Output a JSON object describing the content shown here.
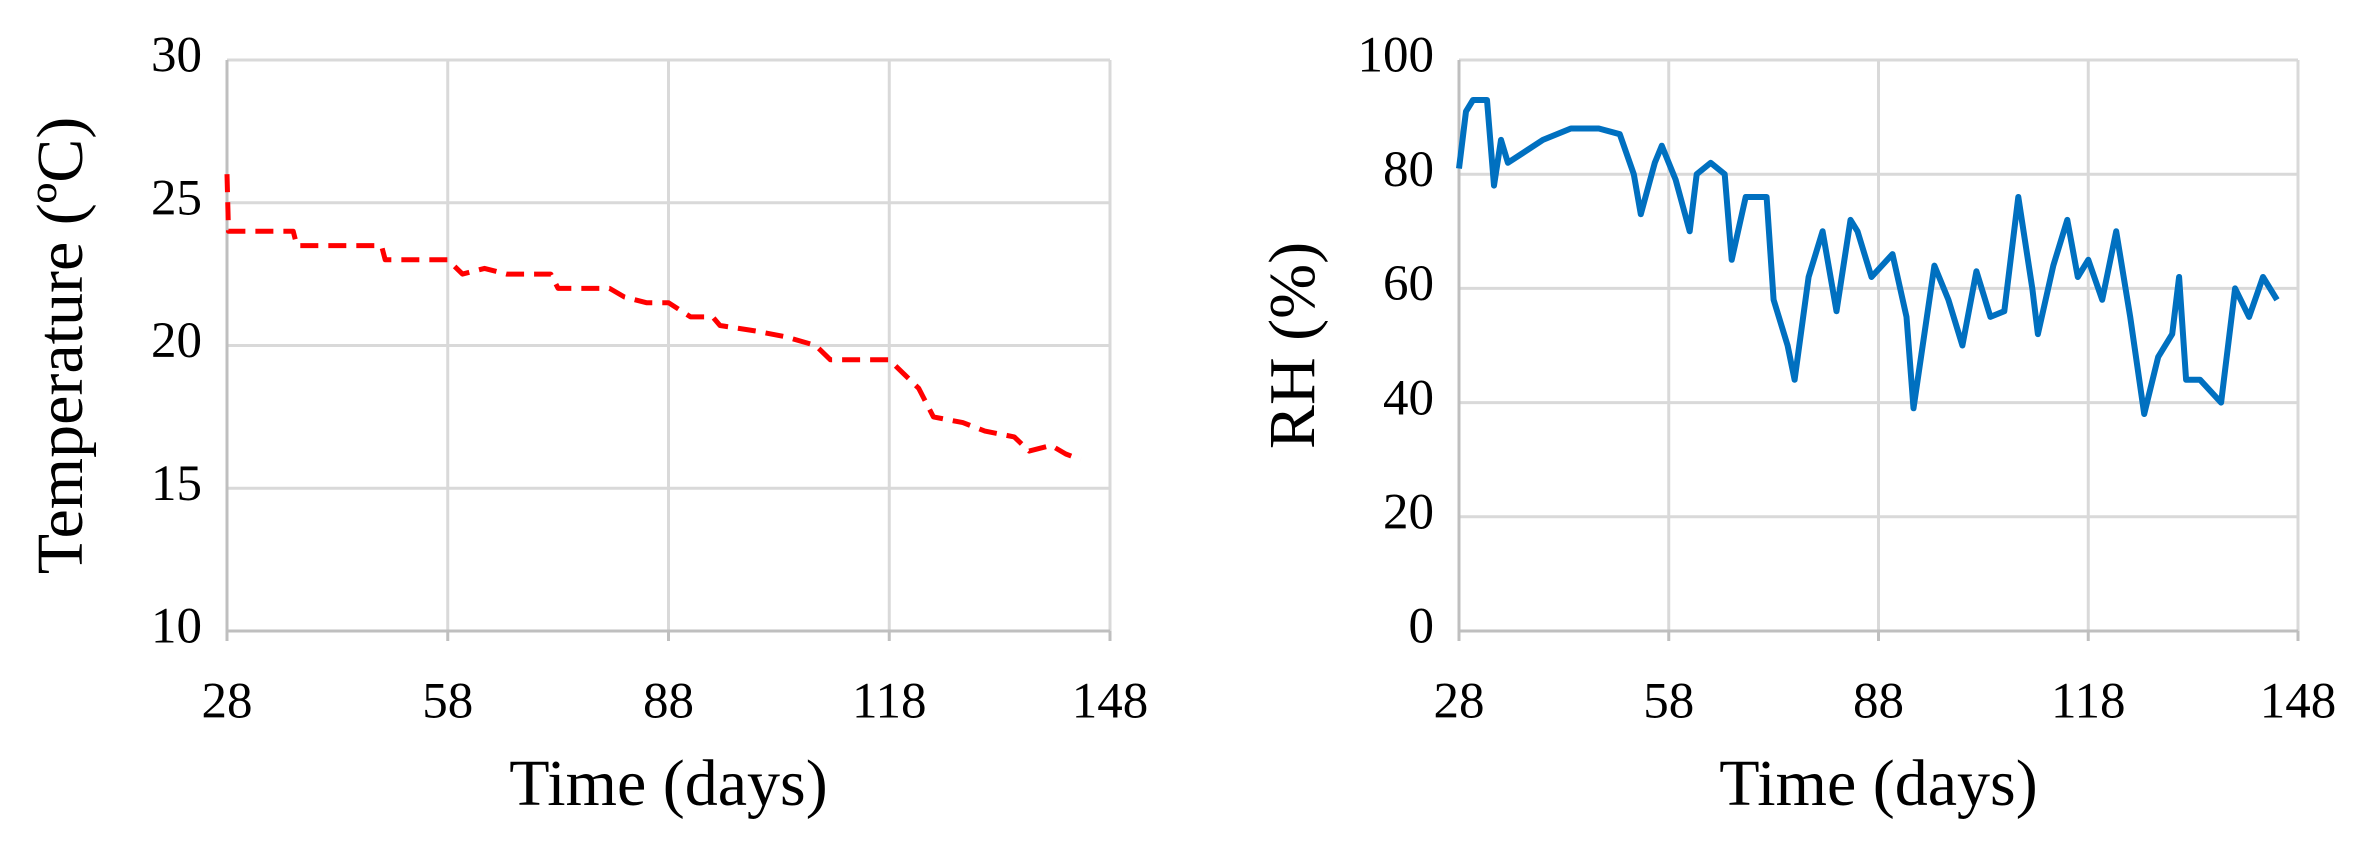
{
  "chart_data": [
    {
      "type": "line",
      "x_label": "Time (days)",
      "y_label": "Temperature (ºC)",
      "xlim": [
        28,
        148
      ],
      "xticks": [
        28,
        58,
        88,
        118,
        148
      ],
      "ylim": [
        10,
        30
      ],
      "yticks": [
        10,
        15,
        20,
        25,
        30
      ],
      "grid": true,
      "series": [
        {
          "color": "#ff0000",
          "dashed": true,
          "x": [
            28,
            28.2,
            37,
            37.5,
            49,
            49.5,
            58,
            60,
            63,
            66,
            72,
            73,
            80,
            82,
            85,
            88,
            91,
            94,
            95,
            100,
            104,
            108,
            110,
            118,
            120,
            122,
            124,
            128,
            131,
            135,
            137,
            140,
            142,
            144
          ],
          "values": [
            26,
            24,
            24,
            23.5,
            23.5,
            23,
            23,
            22.5,
            22.7,
            22.5,
            22.5,
            22,
            22,
            21.7,
            21.5,
            21.5,
            21,
            21,
            20.7,
            20.5,
            20.3,
            20,
            19.5,
            19.5,
            19,
            18.5,
            17.5,
            17.3,
            17,
            16.8,
            16.3,
            16.5,
            16.2,
            16
          ]
        }
      ]
    },
    {
      "type": "line",
      "x_label": "Time (days)",
      "y_label": "RH (%)",
      "xlim": [
        28,
        148
      ],
      "xticks": [
        28,
        58,
        88,
        118,
        148
      ],
      "ylim": [
        0,
        100
      ],
      "yticks": [
        0,
        20,
        40,
        60,
        80,
        100
      ],
      "grid": true,
      "series": [
        {
          "color": "#0070c0",
          "dashed": false,
          "x": [
            28,
            29,
            30,
            32,
            33,
            34,
            35,
            40,
            44,
            48,
            51,
            53,
            54,
            56,
            57,
            59,
            61,
            62,
            64,
            66,
            67,
            69,
            72,
            73,
            75,
            76,
            78,
            80,
            82,
            84,
            85,
            87,
            90,
            92,
            93,
            96,
            98,
            100,
            102,
            104,
            106,
            108,
            110,
            110.8,
            113,
            115,
            116.5,
            118,
            120,
            122,
            124,
            126,
            128,
            130,
            131,
            132,
            134,
            137,
            139,
            141,
            143,
            145
          ],
          "values": [
            81,
            91,
            93,
            93,
            78,
            86,
            82,
            86,
            88,
            88,
            87,
            80,
            73,
            82,
            85,
            79,
            70,
            80,
            82,
            80,
            65,
            76,
            76,
            58,
            50,
            44,
            62,
            70,
            56,
            72,
            70,
            62,
            66,
            55,
            39,
            64,
            58,
            50,
            63,
            55,
            56,
            76,
            60,
            52,
            64,
            72,
            62,
            65,
            58,
            70,
            55,
            38,
            48,
            52,
            62,
            44,
            44,
            40,
            60,
            55,
            62,
            58
          ]
        }
      ]
    }
  ]
}
